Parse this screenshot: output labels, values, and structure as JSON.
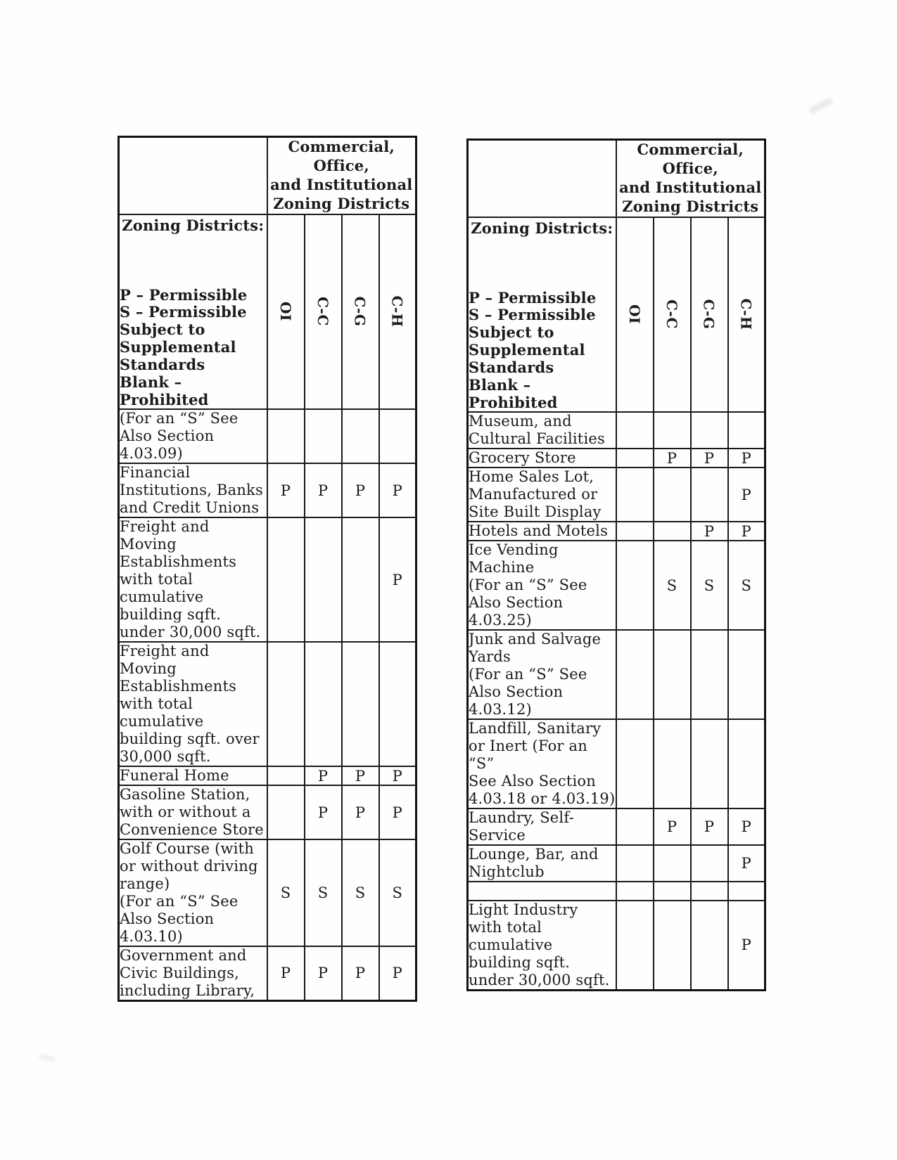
{
  "tables": [
    {
      "group_header": "Commercial, Office,\nand Institutional\nZoning Districts",
      "legend": {
        "title": "Zoning Districts:",
        "lines": [
          "P – Permissible",
          "S – Permissible",
          "Subject to",
          "Supplemental",
          "Standards",
          "Blank – Prohibited"
        ]
      },
      "columns": [
        "OI",
        "C-C",
        "C-G",
        "C-H"
      ],
      "rows": [
        {
          "label": "(For an “S” See\nAlso Section\n4.03.09)",
          "marks": [
            "",
            "",
            "",
            ""
          ]
        },
        {
          "label": "Financial\nInstitutions, Banks\nand Credit Unions",
          "marks": [
            "P",
            "P",
            "P",
            "P"
          ]
        },
        {
          "label": "Freight and\nMoving\nEstablishments\nwith total\ncumulative\nbuilding sqft.\nunder 30,000 sqft.",
          "marks": [
            "",
            "",
            "",
            "P"
          ]
        },
        {
          "label": "Freight and\nMoving\nEstablishments\nwith total\ncumulative\nbuilding sqft. over\n30,000 sqft.",
          "marks": [
            "",
            "",
            "",
            ""
          ]
        },
        {
          "label": "Funeral Home",
          "marks": [
            "",
            "P",
            "P",
            "P"
          ]
        },
        {
          "label": "Gasoline Station,\nwith or without a\nConvenience Store",
          "marks": [
            "",
            "P",
            "P",
            "P"
          ]
        },
        {
          "label": "Golf Course (with\nor without driving\nrange)\n(For an “S” See\nAlso Section\n4.03.10)",
          "marks": [
            "S",
            "S",
            "S",
            "S"
          ]
        },
        {
          "label": "Government and\nCivic Buildings,\nincluding Library,",
          "marks": [
            "P",
            "P",
            "P",
            "P"
          ]
        }
      ]
    },
    {
      "group_header": "Commercial, Office,\nand Institutional\nZoning Districts",
      "legend": {
        "title": "Zoning Districts:",
        "lines": [
          "P – Permissible",
          "S – Permissible",
          "Subject to",
          "Supplemental",
          "Standards",
          "Blank – Prohibited"
        ]
      },
      "columns": [
        "OI",
        "C-C",
        "C-G",
        "C-H"
      ],
      "rows": [
        {
          "label": "Museum, and\nCultural Facilities",
          "marks": [
            "",
            "",
            "",
            ""
          ]
        },
        {
          "label": "Grocery Store",
          "marks": [
            "",
            "P",
            "P",
            "P"
          ]
        },
        {
          "label": "Home Sales Lot,\nManufactured or\nSite Built Display",
          "marks": [
            "",
            "",
            "",
            "P"
          ]
        },
        {
          "label": "Hotels and Motels",
          "marks": [
            "",
            "",
            "P",
            "P"
          ]
        },
        {
          "label": "Ice Vending\nMachine\n(For an “S” See\nAlso Section\n4.03.25)",
          "marks": [
            "",
            "S",
            "S",
            "S"
          ]
        },
        {
          "label": "Junk and Salvage\nYards\n(For an “S” See\nAlso Section\n4.03.12)",
          "marks": [
            "",
            "",
            "",
            ""
          ]
        },
        {
          "label": "Landfill, Sanitary\nor Inert (For an “S”\nSee Also Section\n4.03.18 or 4.03.19)",
          "marks": [
            "",
            "",
            "",
            ""
          ]
        },
        {
          "label": "Laundry, Self-\nService",
          "marks": [
            "",
            "P",
            "P",
            "P"
          ]
        },
        {
          "label": "Lounge, Bar, and\nNightclub",
          "marks": [
            "",
            "",
            "",
            "P"
          ]
        },
        {
          "label": "",
          "marks": [
            "",
            "",
            "",
            ""
          ]
        },
        {
          "label": "Light Industry\nwith total\ncumulative\nbuilding sqft.\nunder 30,000 sqft.",
          "marks": [
            "",
            "",
            "",
            "P"
          ]
        }
      ]
    }
  ]
}
